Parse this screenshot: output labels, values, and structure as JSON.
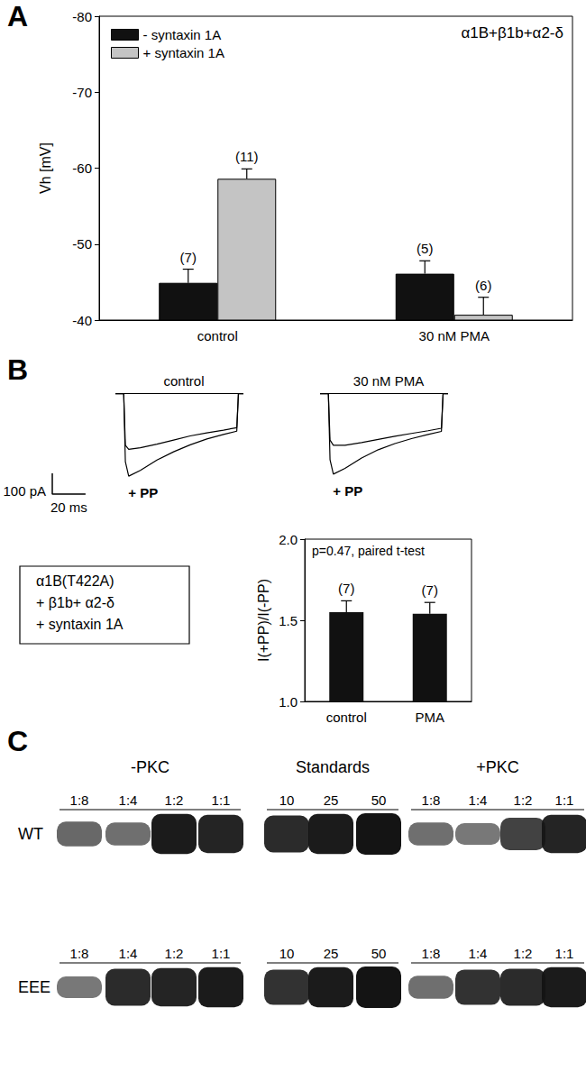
{
  "panel_labels": [
    "A",
    "B",
    "C"
  ],
  "chart_data": [
    {
      "type": "bar",
      "categories": [
        "control",
        "30 nM PMA"
      ],
      "series": [
        {
          "name": "- syntaxin 1A",
          "color": "#111111",
          "values": [
            -44.9,
            -46.1
          ],
          "errors": [
            1.8,
            1.7
          ],
          "n_labels": [
            "(7)",
            "(5)"
          ]
        },
        {
          "name": "+ syntaxin 1A",
          "color": "#c4c4c4",
          "values": [
            -58.6,
            -40.7
          ],
          "errors": [
            1.3,
            2.3
          ],
          "n_labels": [
            "(11)",
            "(6)"
          ]
        }
      ],
      "y_label": "Vh [mV]",
      "annotation": "α1B+β1b+α2-δ",
      "ylim": [
        -40,
        -80
      ],
      "yticks": [
        -80,
        -70,
        -60,
        -50,
        -40
      ],
      "legend": "upper left",
      "grid": false
    },
    {
      "type": "line",
      "title": "control",
      "x": [
        -5,
        0,
        1,
        3,
        10,
        20,
        30,
        40,
        50,
        60,
        68,
        69,
        72
      ],
      "series": [
        {
          "color": "#000000",
          "values": [
            0,
            0,
            -250,
            -270,
            -262,
            -245,
            -225,
            -205,
            -190,
            -177,
            -165,
            0,
            0
          ]
        },
        {
          "name": "+ PP",
          "color": "#000000",
          "values": [
            0,
            0,
            -330,
            -400,
            -372,
            -322,
            -282,
            -248,
            -220,
            -198,
            -182,
            0,
            0
          ]
        }
      ],
      "baseline": 0,
      "xlim": [
        -5,
        72
      ],
      "ylim": [
        -430,
        20
      ],
      "tick_labels": false,
      "scale_bar": {
        "x": 20,
        "y": 100,
        "x_label": "20 ms",
        "y_label": "100 pA"
      }
    },
    {
      "type": "line",
      "title": "30 nM PMA",
      "x": [
        -5,
        0,
        1,
        3,
        10,
        20,
        30,
        40,
        50,
        60,
        68,
        69,
        72
      ],
      "series": [
        {
          "color": "#000000",
          "values": [
            0,
            0,
            -225,
            -250,
            -250,
            -237,
            -222,
            -207,
            -193,
            -180,
            -168,
            0,
            0
          ]
        },
        {
          "name": "+ PP",
          "color": "#000000",
          "values": [
            0,
            0,
            -320,
            -390,
            -362,
            -312,
            -272,
            -242,
            -218,
            -198,
            -183,
            0,
            0
          ]
        }
      ],
      "baseline": 0,
      "xlim": [
        -5,
        72
      ],
      "ylim": [
        -430,
        20
      ],
      "tick_labels": false
    },
    {
      "type": "bar",
      "categories": [
        "control",
        "PMA"
      ],
      "values": [
        1.55,
        1.54
      ],
      "errors": [
        0.07,
        0.07
      ],
      "n_labels": [
        "(7)",
        "(7)"
      ],
      "color": "#111111",
      "y_label": "I(+PP)/I(-PP)",
      "annotation": "p=0.47, paired t-test",
      "ylim": [
        1,
        2
      ],
      "yticks": [
        {
          "value": 1,
          "label": "1.0"
        },
        {
          "value": 1.5,
          "label": "1.5"
        },
        {
          "value": 2,
          "label": "2.0"
        }
      ],
      "grid": false
    }
  ],
  "construct_label": [
    "α1B(T422A)",
    "+ β1b+ α2-δ",
    "+ syntaxin 1A"
  ],
  "blot": {
    "groups": [
      {
        "label": "-PKC",
        "lanes": [
          "1:8",
          "1:4",
          "1:2",
          "1:1"
        ]
      },
      {
        "label": "Standards",
        "lanes": [
          "10",
          "25",
          "50"
        ]
      },
      {
        "label": "+PKC",
        "lanes": [
          "1:8",
          "1:4",
          "1:2",
          "1:1"
        ]
      }
    ],
    "rows": [
      {
        "label": "WT",
        "bands": [
          [
            0.45,
            0.4,
            0.95,
            0.9
          ],
          [
            0.85,
            0.95,
            1.0
          ],
          [
            0.4,
            0.35,
            0.7,
            0.9
          ]
        ]
      },
      {
        "label": "EEE",
        "bands": [
          [
            0.35,
            0.85,
            0.9,
            0.95
          ],
          [
            0.8,
            0.95,
            1.0
          ],
          [
            0.4,
            0.8,
            0.85,
            0.95
          ]
        ]
      }
    ]
  }
}
